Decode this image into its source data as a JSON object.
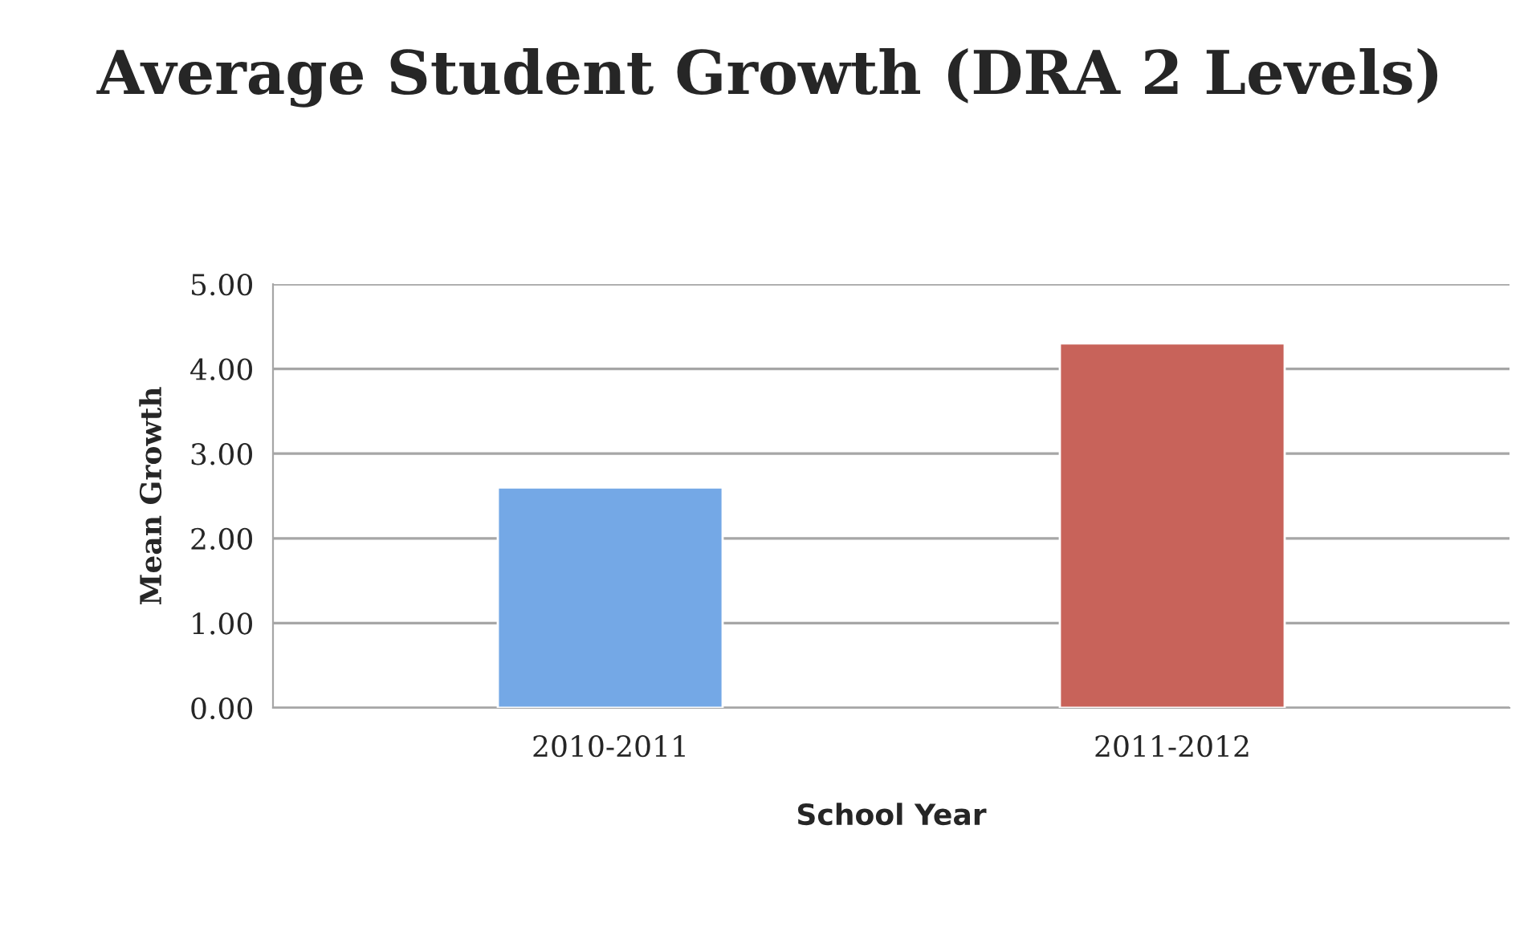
{
  "chart_data": {
    "type": "bar",
    "title": "Average Student Growth (DRA 2 Levels)",
    "xlabel": "School Year",
    "ylabel": "Mean Growth",
    "categories": [
      "2010-2011",
      "2011-2012"
    ],
    "values": [
      2.6,
      4.3
    ],
    "colors": [
      "#74a8e6",
      "#c8635a"
    ],
    "ylim": [
      0,
      5
    ],
    "yticks": [
      {
        "value": 0,
        "label": "0.00"
      },
      {
        "value": 1,
        "label": "1.00"
      },
      {
        "value": 2,
        "label": "2.00"
      },
      {
        "value": 3,
        "label": "3.00"
      },
      {
        "value": 4,
        "label": "4.00"
      },
      {
        "value": 5,
        "label": "5.00"
      }
    ],
    "grid": "y"
  }
}
